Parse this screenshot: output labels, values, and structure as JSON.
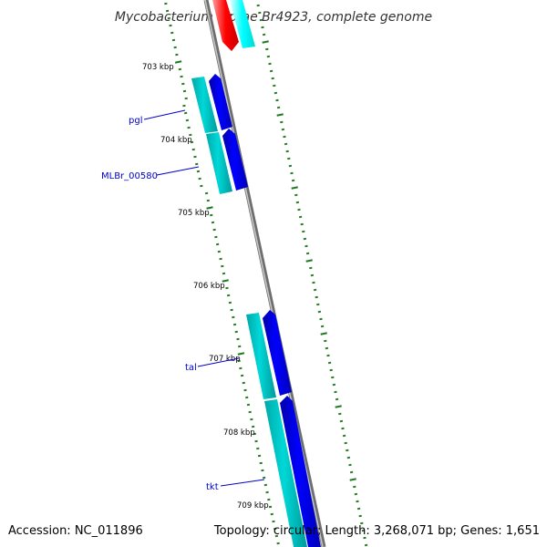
{
  "title": "Mycobacterium leprae Br4923, complete genome",
  "footer": {
    "accession": "Accession: NC_011896",
    "stats": "Topology: circular; Length: 3,268,071 bp; Genes: 1,651"
  },
  "colors": {
    "backbone": "#8a8a8a",
    "tick": "#1f7a1f",
    "cds_forward": "#0000e0",
    "gene_forward": "#00c8c8",
    "cds_reverse": "#e00000",
    "gene_reverse": "#00ffff",
    "label": "#0000cc"
  },
  "kbp_labels": [
    "703 kbp",
    "704 kbp",
    "705 kbp",
    "706 kbp",
    "707 kbp",
    "708 kbp",
    "709 kbp"
  ],
  "gene_labels": [
    {
      "name": "pgl"
    },
    {
      "name": "MLBr_00580"
    },
    {
      "name": "tal"
    },
    {
      "name": "tkt"
    }
  ]
}
